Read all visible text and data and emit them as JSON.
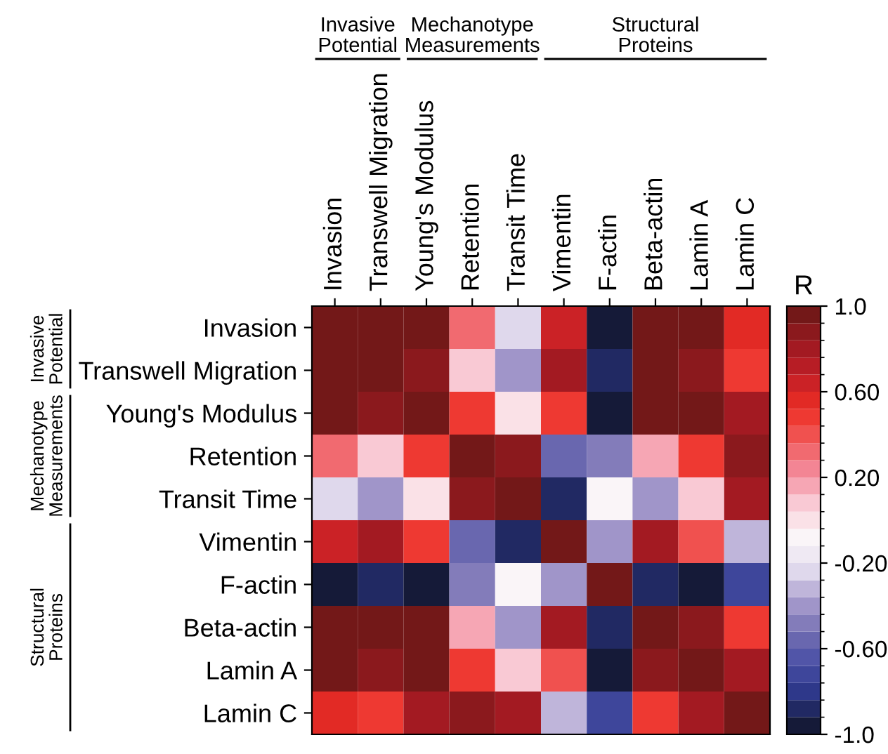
{
  "chart_data": {
    "type": "heatmap",
    "categories": [
      "Invasion",
      "Transwell Migration",
      "Young's Modulus",
      "Retention",
      "Transit Time",
      "Vimentin",
      "F-actin",
      "Beta-actin",
      "Lamin A",
      "Lamin C"
    ],
    "y_categories": [
      "Invasion",
      "Transwell Migration",
      "Young's Modulus",
      "Retention",
      "Transit Time",
      "Vimentin",
      "F-actin",
      "Beta-actin",
      "Lamin A",
      "Lamin C"
    ],
    "cells": [
      [
        1.0,
        0.95,
        0.95,
        0.3,
        -0.25,
        0.65,
        -0.97,
        0.95,
        0.95,
        0.58
      ],
      [
        0.95,
        1.0,
        0.88,
        0.05,
        -0.38,
        0.78,
        -0.85,
        0.95,
        0.88,
        0.5
      ],
      [
        0.95,
        0.88,
        1.0,
        0.5,
        -0.02,
        0.5,
        -0.97,
        0.95,
        0.95,
        0.78
      ],
      [
        0.3,
        0.05,
        0.5,
        1.0,
        0.88,
        -0.6,
        -0.5,
        0.15,
        0.5,
        0.88
      ],
      [
        -0.25,
        -0.38,
        -0.02,
        0.88,
        1.0,
        -0.85,
        -0.12,
        -0.38,
        0.05,
        0.78
      ],
      [
        0.65,
        0.78,
        0.5,
        -0.6,
        -0.85,
        1.0,
        -0.38,
        0.78,
        0.42,
        -0.3
      ],
      [
        -0.97,
        -0.85,
        -0.97,
        -0.5,
        -0.12,
        -0.38,
        1.0,
        -0.85,
        -0.97,
        -0.68
      ],
      [
        0.95,
        0.95,
        0.95,
        0.15,
        -0.38,
        0.78,
        -0.85,
        1.0,
        0.88,
        0.5
      ],
      [
        0.95,
        0.88,
        0.95,
        0.5,
        0.05,
        0.42,
        -0.97,
        0.88,
        1.0,
        0.78
      ],
      [
        0.58,
        0.5,
        0.78,
        0.88,
        0.78,
        -0.3,
        -0.68,
        0.5,
        0.78,
        1.0
      ]
    ],
    "clabel": "R",
    "clim": [
      -1.0,
      1.0
    ],
    "cticks": [
      {
        "value": 1.0,
        "label": "1.0"
      },
      {
        "value": 0.6,
        "label": "0.60"
      },
      {
        "value": 0.2,
        "label": "0.20"
      },
      {
        "value": -0.2,
        "label": "-0.20"
      },
      {
        "value": -0.6,
        "label": "-0.60"
      },
      {
        "value": -1.0,
        "label": "-1.0"
      }
    ],
    "annotations": [
      "Invasive\nPotential",
      "Mechanotype\nMeasurements",
      "Structural\nProteins",
      "Invasive\nPotential",
      "Mechanotype\nMeasurements",
      "Structural\nProteins"
    ]
  }
}
